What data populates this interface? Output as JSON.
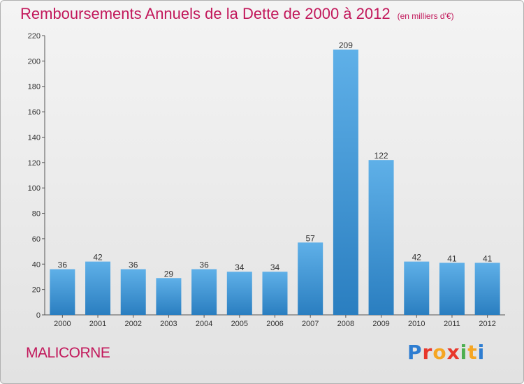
{
  "header": {
    "title": "Remboursements Annuels de la Dette de 2000 à 2012",
    "subtitle": "(en milliers d'€)"
  },
  "footer": {
    "commune": "MALICORNE",
    "brand": [
      "P",
      "r",
      "o",
      "x",
      "i",
      "t",
      "i"
    ]
  },
  "colors": {
    "accent": "#c2185b",
    "bar_top": "#5fb0e8",
    "bar_bottom": "#2a7ec0",
    "brand": [
      "#2e7dd1",
      "#e8372b",
      "#f5a623",
      "#e8372b",
      "#4caf50",
      "#f5a623",
      "#2e7dd1"
    ]
  },
  "chart_data": {
    "type": "bar",
    "title": "Remboursements Annuels de la Dette de 2000 à 2012",
    "subtitle": "(en milliers d'€)",
    "xlabel": "",
    "ylabel": "",
    "categories": [
      "2000",
      "2001",
      "2002",
      "2003",
      "2004",
      "2005",
      "2006",
      "2007",
      "2008",
      "2009",
      "2010",
      "2011",
      "2012"
    ],
    "values": [
      36,
      42,
      36,
      29,
      36,
      34,
      34,
      57,
      209,
      122,
      42,
      41,
      41
    ],
    "ylim": [
      0,
      220
    ],
    "yticks": [
      0,
      20,
      40,
      60,
      80,
      100,
      120,
      140,
      160,
      180,
      200,
      220
    ],
    "grid": false,
    "legend": "none"
  }
}
